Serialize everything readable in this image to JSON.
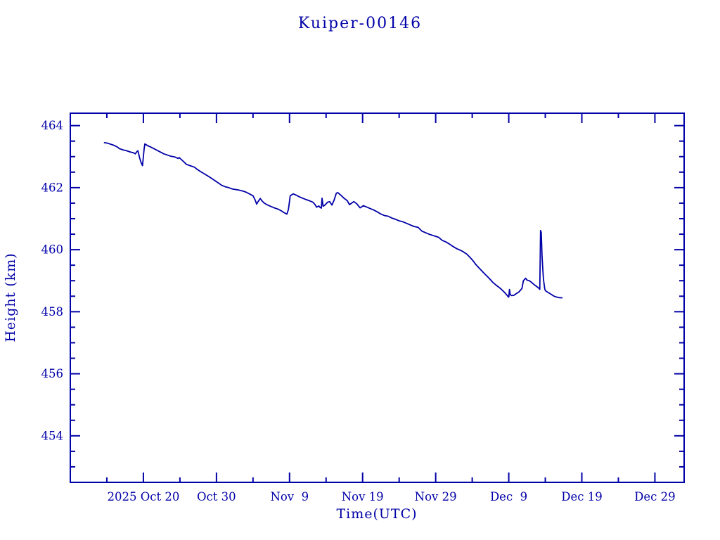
{
  "page": {
    "background": "#ffffff"
  },
  "colors": {
    "accent": "#0000A8",
    "line": "#0000A8",
    "background": "#ffffff"
  },
  "chart_data": {
    "type": "line",
    "title": "Kuiper-00146",
    "xlabel": "Time(UTC)",
    "ylabel": "Height (km)",
    "legend": "none",
    "grid": "off",
    "x_unit": "days since 2025-10-10",
    "xlim": [
      0,
      84
    ],
    "ylim": [
      452.5,
      464.4
    ],
    "x_major_ticks": [
      {
        "day": 10,
        "label": "2025 Oct 20"
      },
      {
        "day": 20,
        "label": "Oct 30"
      },
      {
        "day": 30,
        "label": "Nov  9"
      },
      {
        "day": 40,
        "label": "Nov 19"
      },
      {
        "day": 50,
        "label": "Nov 29"
      },
      {
        "day": 60,
        "label": "Dec  9"
      },
      {
        "day": 70,
        "label": "Dec 19"
      },
      {
        "day": 80,
        "label": "Dec 29"
      }
    ],
    "x_minor_tick_days": [
      5,
      15,
      25,
      35,
      45,
      55,
      65,
      75
    ],
    "y_major_ticks": [
      {
        "value": 464,
        "label": "464"
      },
      {
        "value": 462,
        "label": "462"
      },
      {
        "value": 460,
        "label": "460"
      },
      {
        "value": 458,
        "label": "458"
      },
      {
        "value": 456,
        "label": "456"
      },
      {
        "value": 454,
        "label": "454"
      }
    ],
    "y_minor_step": 0.5,
    "series": [
      {
        "name": "height",
        "color": "#0000A8",
        "points": [
          [
            4.6,
            463.45
          ],
          [
            5.0,
            463.44
          ],
          [
            5.4,
            463.41
          ],
          [
            5.8,
            463.38
          ],
          [
            6.2,
            463.34
          ],
          [
            6.5,
            463.3
          ],
          [
            6.7,
            463.26
          ],
          [
            7.2,
            463.22
          ],
          [
            7.7,
            463.19
          ],
          [
            8.2,
            463.15
          ],
          [
            8.7,
            463.12
          ],
          [
            8.9,
            463.09
          ],
          [
            9.1,
            463.16
          ],
          [
            9.25,
            463.19
          ],
          [
            9.5,
            462.95
          ],
          [
            9.7,
            462.8
          ],
          [
            9.88,
            462.71
          ],
          [
            10.0,
            463.0
          ],
          [
            10.1,
            463.25
          ],
          [
            10.2,
            463.41
          ],
          [
            10.6,
            463.35
          ],
          [
            11.0,
            463.31
          ],
          [
            11.9,
            463.2
          ],
          [
            12.8,
            463.09
          ],
          [
            13.8,
            463.01
          ],
          [
            14.3,
            462.99
          ],
          [
            14.75,
            462.94
          ],
          [
            14.9,
            462.97
          ],
          [
            15.4,
            462.86
          ],
          [
            15.9,
            462.75
          ],
          [
            16.4,
            462.71
          ],
          [
            17.0,
            462.66
          ],
          [
            17.3,
            462.6
          ],
          [
            17.8,
            462.52
          ],
          [
            18.3,
            462.45
          ],
          [
            18.8,
            462.38
          ],
          [
            19.2,
            462.32
          ],
          [
            19.7,
            462.24
          ],
          [
            20.2,
            462.16
          ],
          [
            20.7,
            462.08
          ],
          [
            21.2,
            462.03
          ],
          [
            21.7,
            462.0
          ],
          [
            22.1,
            461.96
          ],
          [
            22.6,
            461.94
          ],
          [
            23.1,
            461.92
          ],
          [
            23.6,
            461.89
          ],
          [
            24.1,
            461.85
          ],
          [
            24.5,
            461.8
          ],
          [
            25.0,
            461.74
          ],
          [
            25.3,
            461.6
          ],
          [
            25.5,
            461.47
          ],
          [
            25.7,
            461.55
          ],
          [
            26.0,
            461.65
          ],
          [
            26.2,
            461.58
          ],
          [
            26.5,
            461.51
          ],
          [
            26.9,
            461.45
          ],
          [
            27.4,
            461.4
          ],
          [
            27.9,
            461.35
          ],
          [
            28.4,
            461.31
          ],
          [
            28.9,
            461.25
          ],
          [
            29.2,
            461.2
          ],
          [
            29.45,
            461.17
          ],
          [
            29.65,
            461.15
          ],
          [
            29.85,
            461.3
          ],
          [
            30.1,
            461.74
          ],
          [
            30.5,
            461.8
          ],
          [
            30.9,
            461.76
          ],
          [
            31.3,
            461.71
          ],
          [
            31.8,
            461.66
          ],
          [
            32.2,
            461.62
          ],
          [
            32.7,
            461.58
          ],
          [
            33.2,
            461.53
          ],
          [
            33.5,
            461.45
          ],
          [
            33.7,
            461.37
          ],
          [
            34.0,
            461.41
          ],
          [
            34.2,
            461.36
          ],
          [
            34.35,
            461.34
          ],
          [
            34.45,
            461.66
          ],
          [
            34.6,
            461.4
          ],
          [
            34.9,
            461.45
          ],
          [
            35.2,
            461.53
          ],
          [
            35.5,
            461.55
          ],
          [
            35.8,
            461.44
          ],
          [
            36.1,
            461.6
          ],
          [
            36.4,
            461.82
          ],
          [
            36.6,
            461.84
          ],
          [
            36.9,
            461.78
          ],
          [
            37.1,
            461.74
          ],
          [
            37.5,
            461.65
          ],
          [
            37.9,
            461.58
          ],
          [
            38.2,
            461.45
          ],
          [
            38.5,
            461.5
          ],
          [
            38.8,
            461.55
          ],
          [
            39.2,
            461.48
          ],
          [
            39.65,
            461.35
          ],
          [
            40.1,
            461.42
          ],
          [
            40.5,
            461.38
          ],
          [
            41.0,
            461.33
          ],
          [
            41.5,
            461.28
          ],
          [
            42.0,
            461.22
          ],
          [
            42.5,
            461.15
          ],
          [
            43.0,
            461.1
          ],
          [
            43.5,
            461.08
          ],
          [
            44.0,
            461.02
          ],
          [
            44.5,
            460.98
          ],
          [
            45.0,
            460.93
          ],
          [
            45.5,
            460.9
          ],
          [
            46.0,
            460.85
          ],
          [
            46.5,
            460.8
          ],
          [
            47.0,
            460.75
          ],
          [
            47.6,
            460.72
          ],
          [
            48.1,
            460.6
          ],
          [
            48.6,
            460.55
          ],
          [
            49.1,
            460.5
          ],
          [
            49.6,
            460.46
          ],
          [
            50.0,
            460.43
          ],
          [
            50.4,
            460.4
          ],
          [
            50.9,
            460.3
          ],
          [
            51.4,
            460.25
          ],
          [
            51.9,
            460.18
          ],
          [
            52.4,
            460.1
          ],
          [
            52.9,
            460.03
          ],
          [
            53.4,
            459.98
          ],
          [
            53.8,
            459.93
          ],
          [
            54.3,
            459.85
          ],
          [
            54.7,
            459.75
          ],
          [
            55.1,
            459.65
          ],
          [
            55.5,
            459.52
          ],
          [
            55.9,
            459.42
          ],
          [
            56.3,
            459.32
          ],
          [
            56.7,
            459.22
          ],
          [
            57.1,
            459.13
          ],
          [
            57.5,
            459.03
          ],
          [
            57.8,
            458.95
          ],
          [
            58.2,
            458.87
          ],
          [
            58.6,
            458.8
          ],
          [
            59.0,
            458.72
          ],
          [
            59.4,
            458.63
          ],
          [
            59.7,
            458.55
          ],
          [
            59.9,
            458.49
          ],
          [
            60.0,
            458.47
          ],
          [
            60.1,
            458.72
          ],
          [
            60.2,
            458.55
          ],
          [
            60.4,
            458.52
          ],
          [
            60.7,
            458.53
          ],
          [
            61.0,
            458.58
          ],
          [
            61.4,
            458.64
          ],
          [
            61.8,
            458.75
          ],
          [
            62.0,
            459.0
          ],
          [
            62.3,
            459.08
          ],
          [
            62.5,
            459.02
          ],
          [
            62.8,
            459.0
          ],
          [
            63.1,
            458.95
          ],
          [
            63.5,
            458.87
          ],
          [
            63.9,
            458.8
          ],
          [
            64.1,
            458.76
          ],
          [
            64.25,
            458.72
          ],
          [
            64.35,
            460.62
          ],
          [
            64.45,
            460.55
          ],
          [
            64.55,
            459.8
          ],
          [
            64.65,
            459.4
          ],
          [
            64.75,
            459.05
          ],
          [
            64.85,
            458.86
          ],
          [
            64.95,
            458.71
          ],
          [
            65.1,
            458.66
          ],
          [
            65.4,
            458.62
          ],
          [
            65.8,
            458.56
          ],
          [
            66.2,
            458.5
          ],
          [
            66.6,
            458.47
          ],
          [
            67.0,
            458.45
          ],
          [
            67.35,
            458.45
          ]
        ]
      }
    ]
  }
}
